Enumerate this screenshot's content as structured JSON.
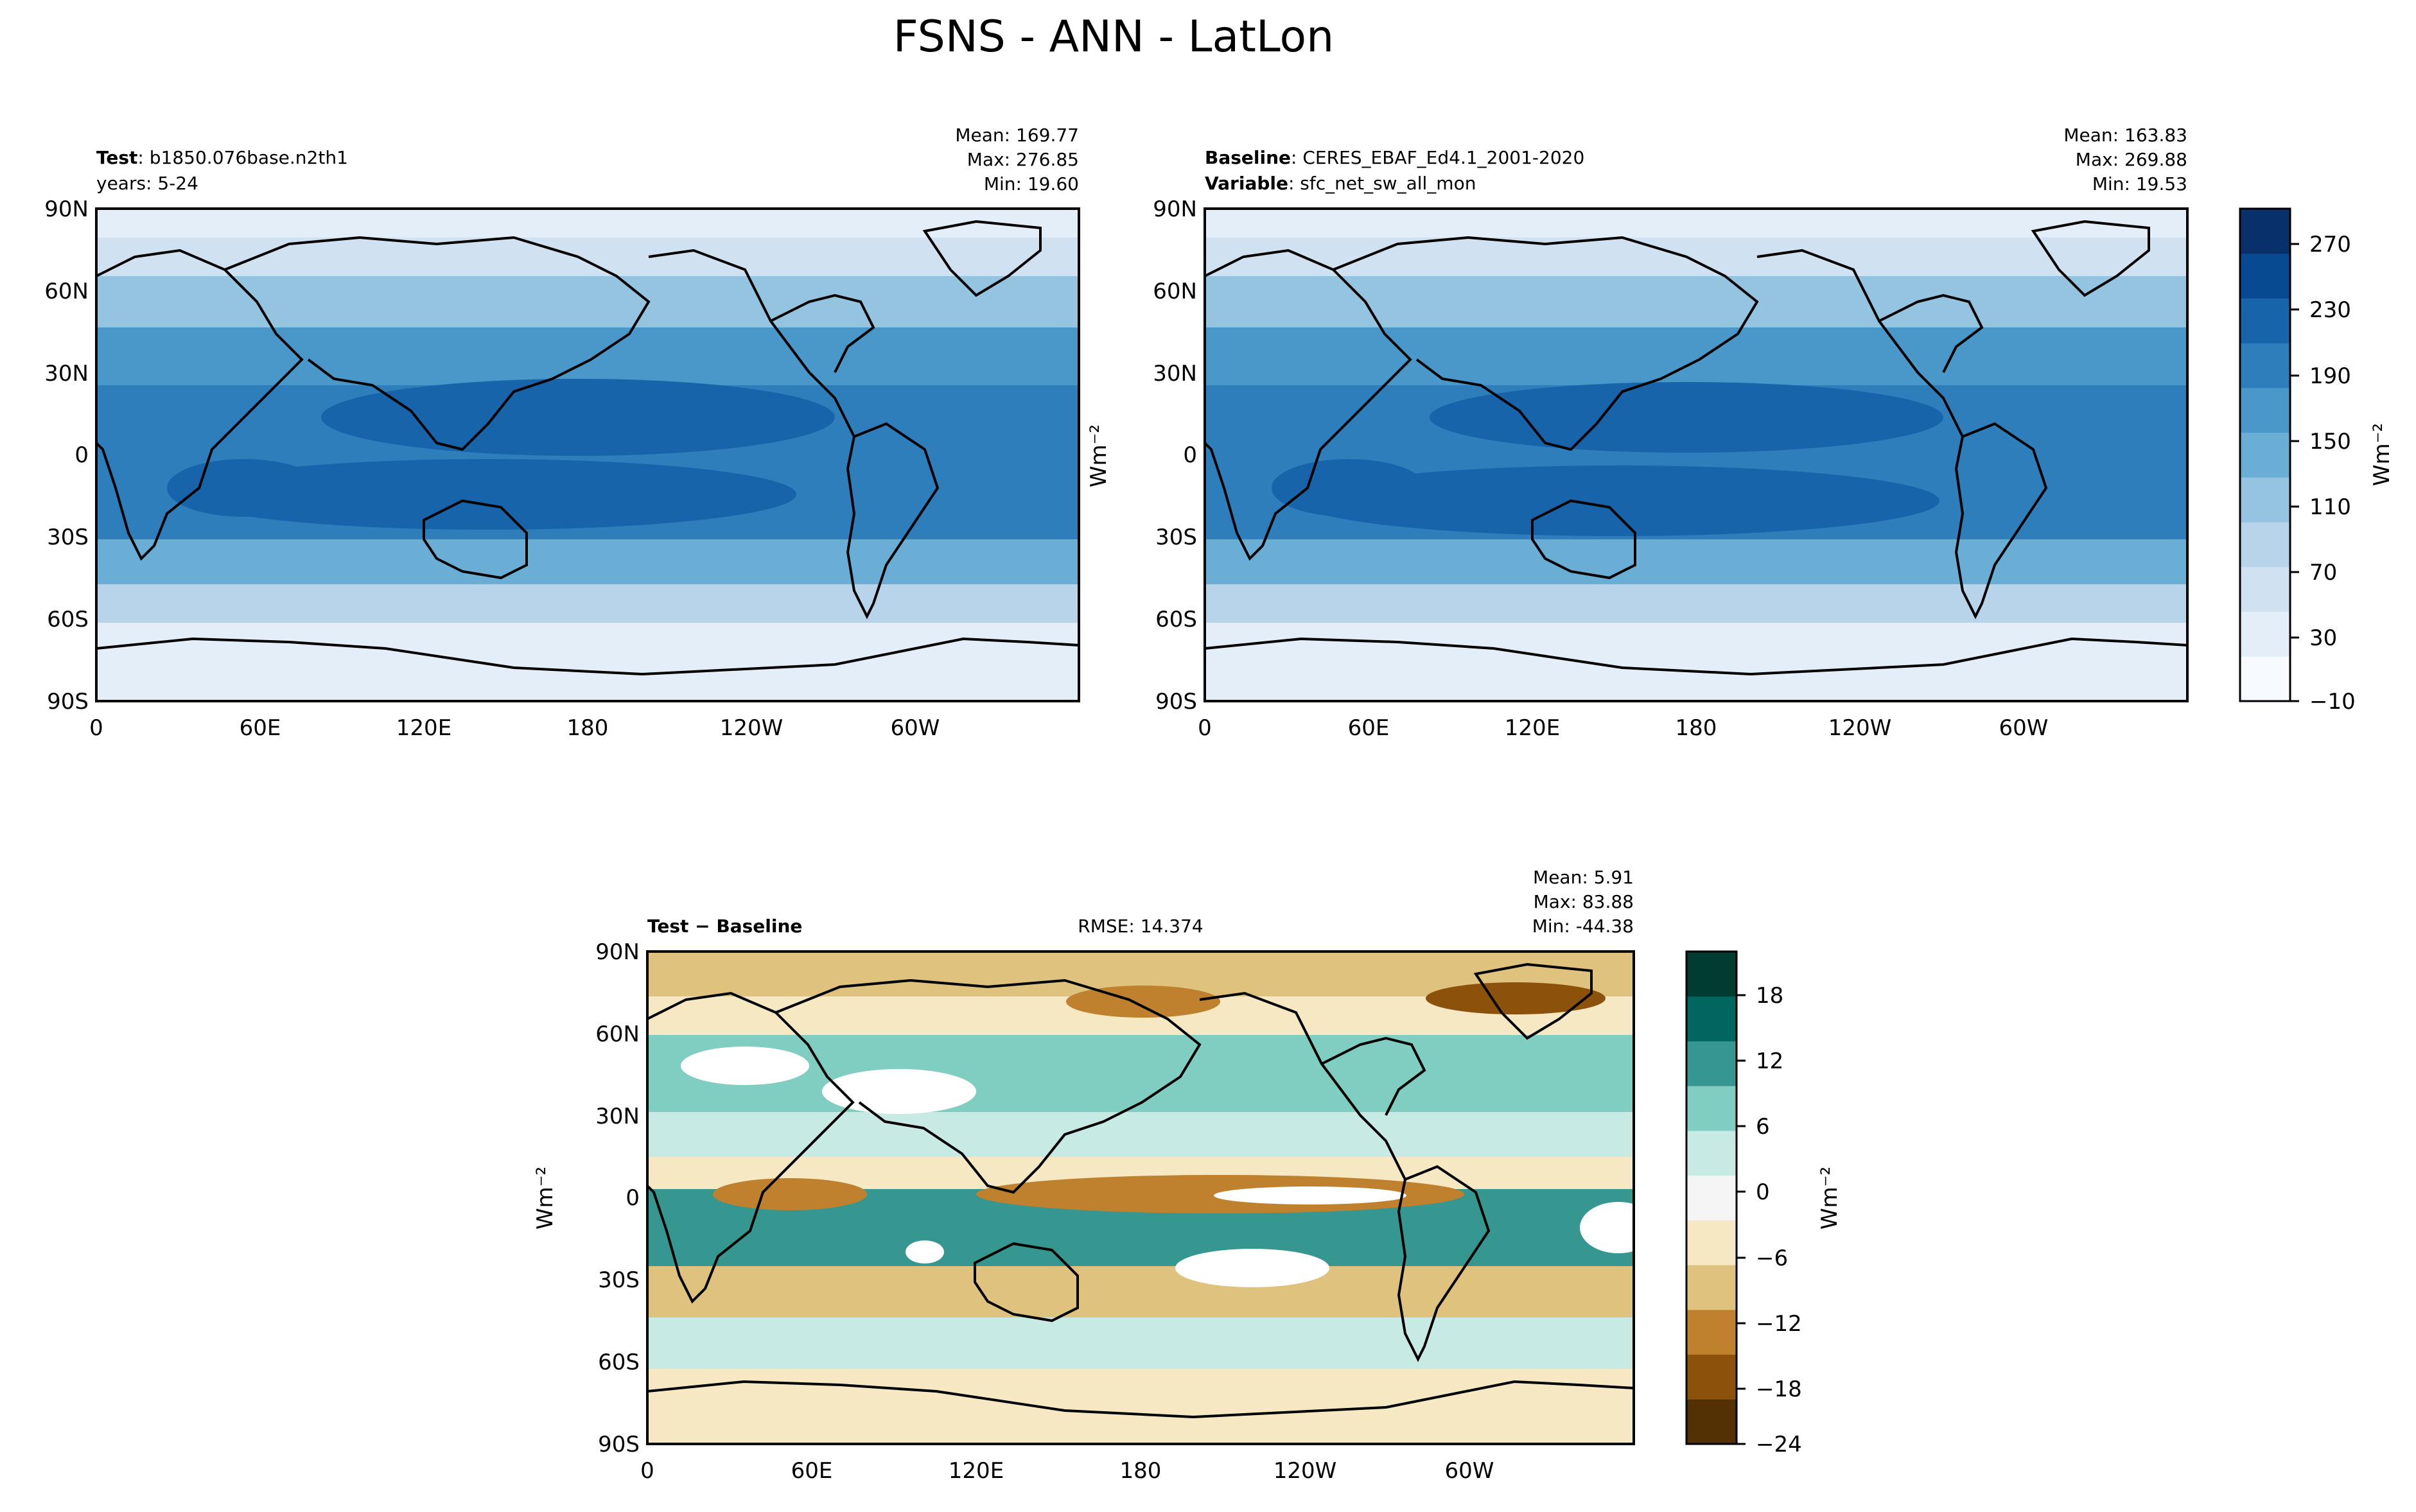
{
  "figure": {
    "title": "FSNS - ANN - LatLon"
  },
  "panels": [
    {
      "id": "test",
      "header": {
        "label_bold": "Test",
        "label_rest": ": b1850.076base.n2th1",
        "line2_bold": "",
        "line2_rest": "years: 5-24",
        "center": ""
      },
      "stats": {
        "mean": "Mean: 169.77",
        "max": "Max: 276.85",
        "min": "Min: 19.60"
      },
      "ylabel": "",
      "palette": "blues"
    },
    {
      "id": "baseline",
      "header": {
        "label_bold": "Baseline",
        "label_rest": ": CERES_EBAF_Ed4.1_2001-2020",
        "line2_bold": "Variable",
        "line2_rest": ": sfc_net_sw_all_mon",
        "center": ""
      },
      "stats": {
        "mean": "Mean: 163.83",
        "max": "Max: 269.88",
        "min": "Min: 19.53"
      },
      "ylabel": "Wm⁻²",
      "palette": "blues"
    },
    {
      "id": "diff",
      "header": {
        "label_bold": "Test − Baseline",
        "label_rest": "",
        "line2_bold": "",
        "line2_rest": "",
        "center": "RMSE: 14.374"
      },
      "stats": {
        "mean": "Mean:  5.91",
        "max": "Max: 83.88",
        "min": "Min: -44.38"
      },
      "ylabel": "Wm⁻²",
      "palette": "brbg"
    }
  ],
  "axes": {
    "lat_ticks": [
      "90N",
      "60N",
      "30N",
      "0",
      "30S",
      "60S",
      "90S"
    ],
    "lon_ticks": [
      "0",
      "60E",
      "120E",
      "180",
      "120W",
      "60W"
    ]
  },
  "colorbars": [
    {
      "id": "blues-cbar",
      "label": "Wm⁻²",
      "range": [
        -10,
        290
      ],
      "ticks": [
        "270",
        "230",
        "190",
        "150",
        "110",
        "70",
        "30",
        "−10"
      ],
      "colors": [
        "#f7fbff",
        "#e3eef9",
        "#d0e1f2",
        "#b7d4ea",
        "#94c4df",
        "#6aaed6",
        "#4a98c9",
        "#2e7ebc",
        "#1764ab",
        "#084a91",
        "#08306b"
      ]
    },
    {
      "id": "brbg-cbar",
      "label": "Wm⁻²",
      "range": [
        -24,
        21
      ],
      "ticks": [
        "18",
        "12",
        "6",
        "0",
        "−6",
        "−12",
        "−18",
        "−24"
      ],
      "colors": [
        "#543005",
        "#8c510a",
        "#bf812d",
        "#dfc27d",
        "#f6e8c3",
        "#f5f5f5",
        "#c7eae5",
        "#80cdc1",
        "#35978f",
        "#01665e",
        "#003c30"
      ]
    }
  ]
}
